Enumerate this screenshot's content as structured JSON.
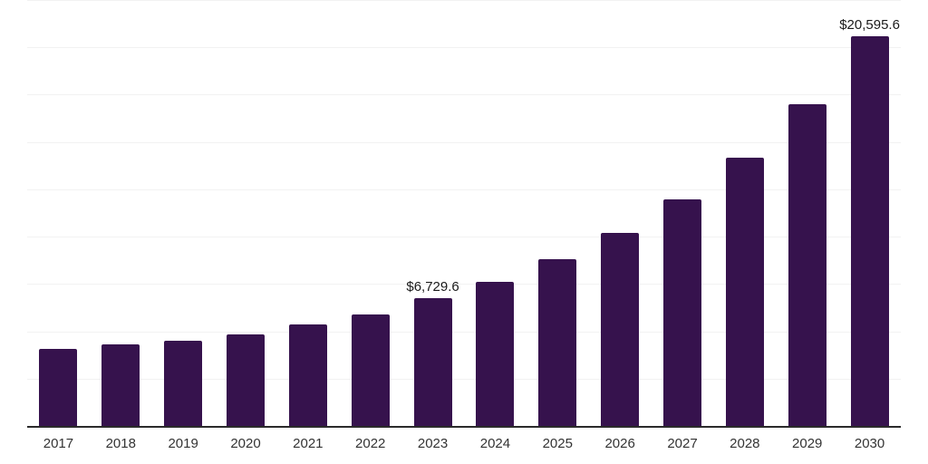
{
  "chart_data": {
    "type": "bar",
    "title": "",
    "xlabel": "",
    "ylabel": "",
    "categories": [
      "2017",
      "2018",
      "2019",
      "2020",
      "2021",
      "2022",
      "2023",
      "2024",
      "2025",
      "2026",
      "2027",
      "2028",
      "2029",
      "2030"
    ],
    "values": [
      4080,
      4320,
      4515,
      4835,
      5375,
      5900,
      6729.6,
      7610,
      8810,
      10210,
      11970,
      14170,
      16980,
      20595.6
    ],
    "point_labels": [
      null,
      null,
      null,
      null,
      null,
      null,
      "$6,729.6",
      null,
      null,
      null,
      null,
      null,
      null,
      "$20,595.6"
    ],
    "ylim": [
      0,
      22500
    ],
    "gridline_step": 2500,
    "grid": "horizontal",
    "legend": "none",
    "y_axis_labels_visible": false
  },
  "colors": {
    "bar": "#36124D",
    "axis_line": "#2B2B2B",
    "gridline": "#F2F2F2",
    "tick_label": "#333333",
    "data_label": "#1A1A1A",
    "background": "#FFFFFF"
  }
}
